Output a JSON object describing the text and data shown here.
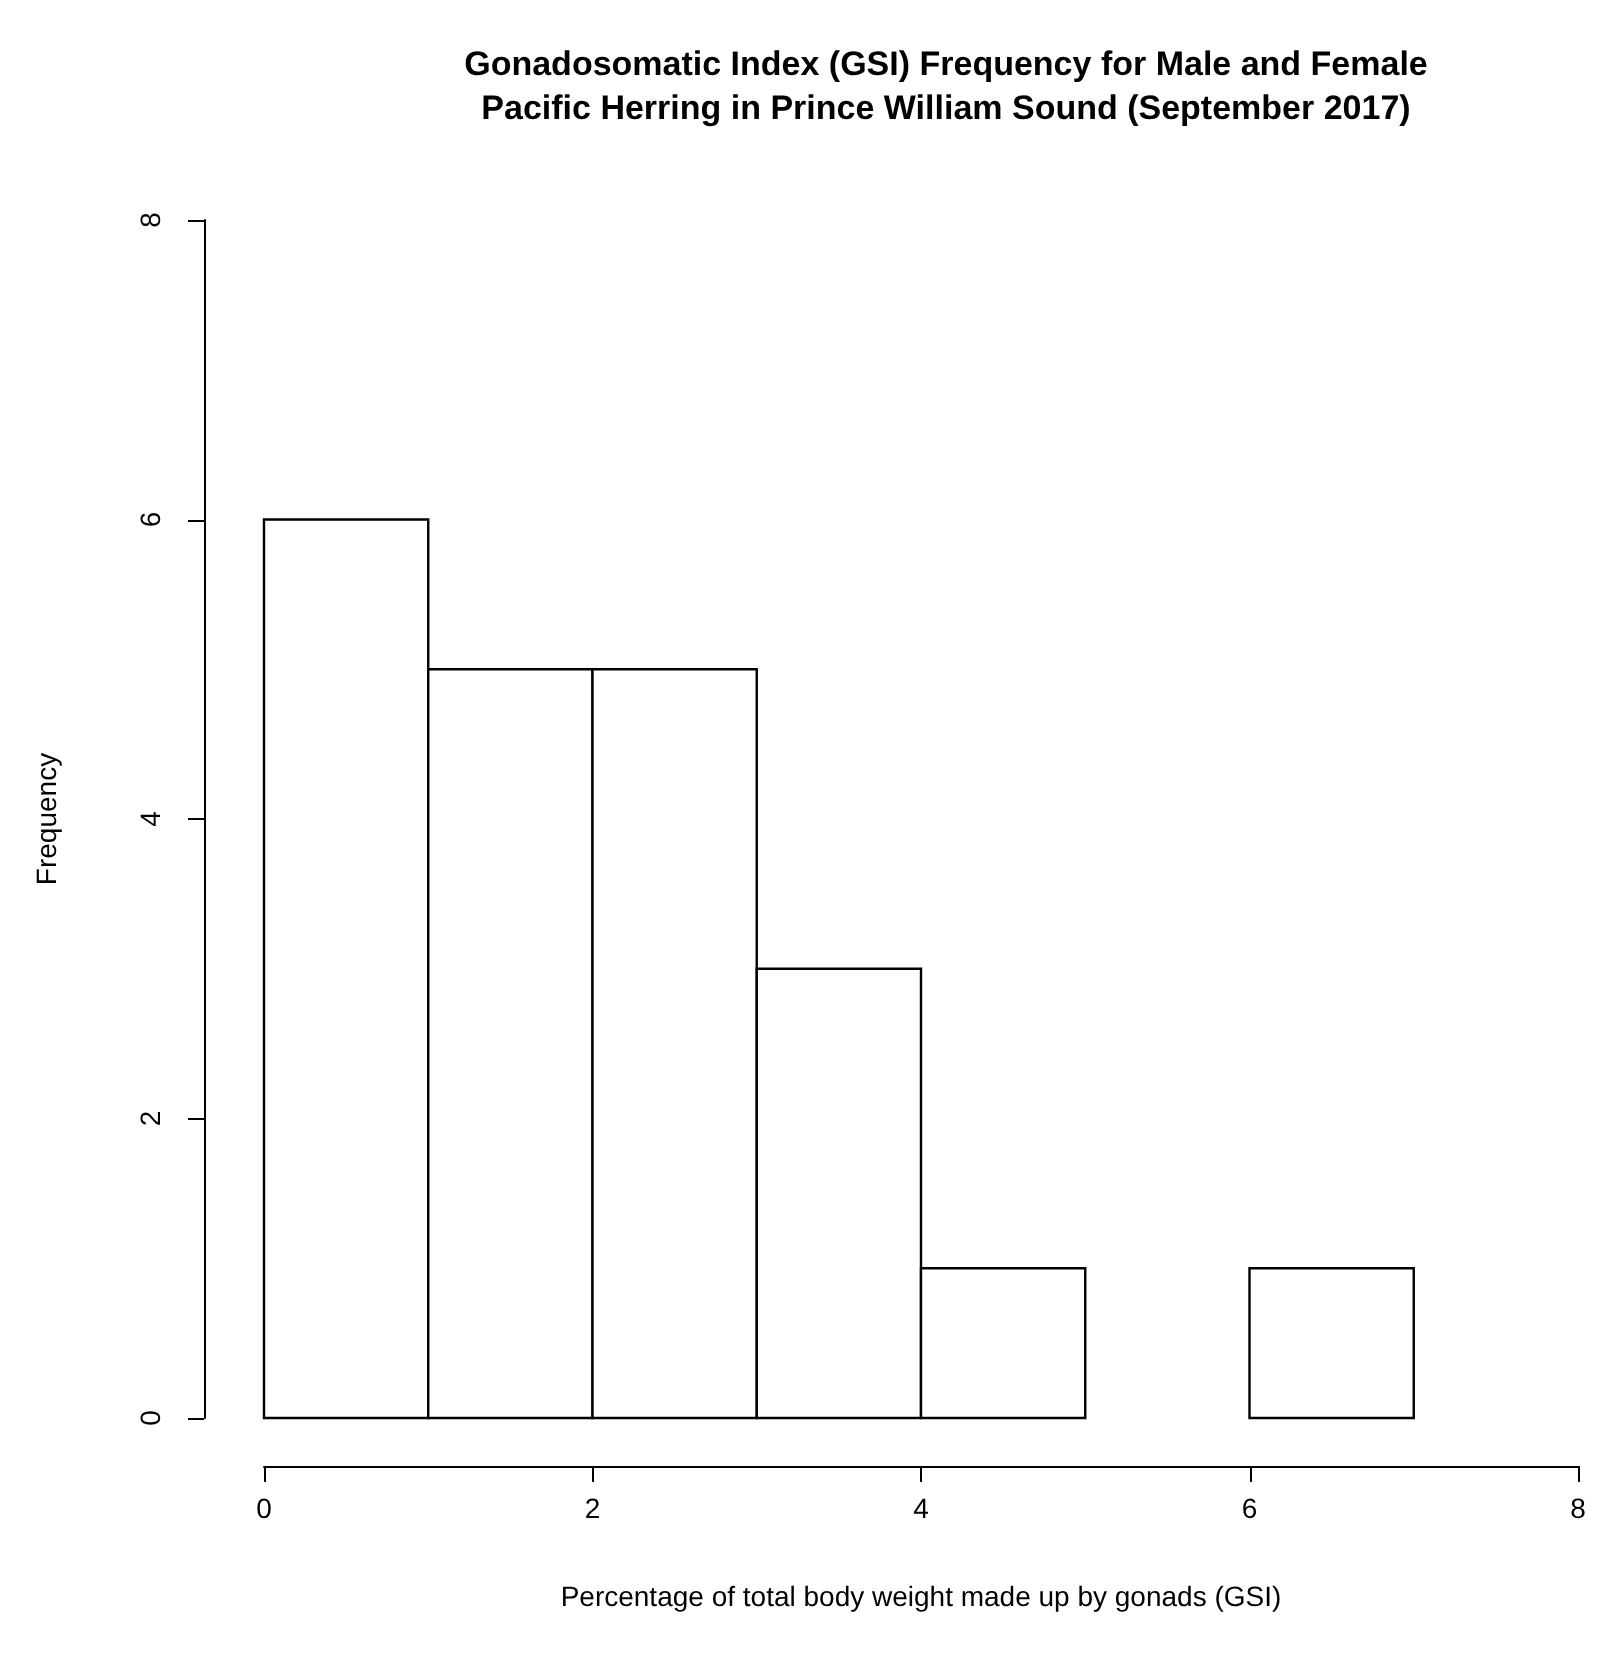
{
  "chart_data": {
    "type": "histogram",
    "title": "Gonadosomatic Index (GSI) Frequency for Male and Female\nPacific Herring in Prince William Sound (September 2017)",
    "xlabel": "Percentage of total body weight made up by gonads (GSI)",
    "ylabel": "Frequency",
    "bins": [
      0,
      1,
      2,
      3,
      4,
      5,
      6,
      7
    ],
    "values": [
      6,
      5,
      5,
      3,
      1,
      0,
      1
    ],
    "color": "#ffffff",
    "xlim": [
      0,
      8
    ],
    "xticks": [
      0,
      2,
      4,
      6,
      8
    ],
    "ylim": [
      0,
      8
    ],
    "yticks": [
      0,
      2,
      4,
      6,
      8
    ],
    "grid": false
  }
}
